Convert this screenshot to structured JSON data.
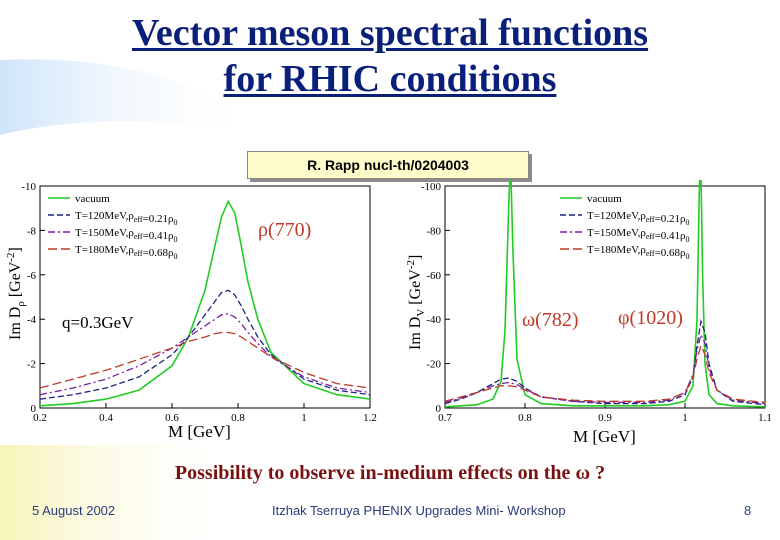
{
  "slide": {
    "title_line1": "Vector meson spectral functions",
    "title_line2": "for RHIC conditions",
    "citation": "R. Rapp nucl-th/0204003",
    "caption": "Possibility to observe in-medium effects on the",
    "caption_symbol": "ω",
    "caption_end": "?",
    "footer_date": "5 August 2002",
    "footer_author": "Itzhak Tserruya PHENIX Upgrades Mini- Workshop",
    "footer_page": "8"
  },
  "colors": {
    "title": "#0a1f7a",
    "caption": "#7a1111",
    "vacuum": "#22cc22",
    "T120": "#1a237e",
    "T150": "#7b1fa2",
    "T180": "#c0392b",
    "annotation": "#c0392b"
  },
  "chart_data": [
    {
      "type": "line",
      "xlabel": "M [GeV]",
      "ylabel": "Im D",
      "ylabel_sub": "ρ",
      "ylabel_unit": "[GeV",
      "ylabel_sup": "-2",
      "ylabel_close": "]",
      "xlim": [
        0.2,
        1.2
      ],
      "ylim": [
        0,
        10
      ],
      "xticks": [
        "0.2",
        "0.4",
        "0.6",
        "0.8",
        "1",
        "1.2"
      ],
      "yticks": [
        "0",
        "-2",
        "-4",
        "-6",
        "-8",
        "-10"
      ],
      "annotations": [
        "ρ(770)",
        "q=0.3GeV"
      ],
      "legend_position": "top-left",
      "series": [
        {
          "name": "vacuum",
          "legend": "vacuum",
          "style": "solid",
          "x": [
            0.2,
            0.3,
            0.4,
            0.5,
            0.6,
            0.65,
            0.7,
            0.73,
            0.75,
            0.77,
            0.79,
            0.81,
            0.83,
            0.86,
            0.9,
            1.0,
            1.1,
            1.2
          ],
          "y": [
            0.1,
            0.2,
            0.4,
            0.8,
            1.9,
            3.2,
            5.3,
            7.3,
            8.6,
            9.3,
            8.8,
            7.3,
            5.7,
            4.0,
            2.5,
            1.1,
            0.6,
            0.4
          ]
        },
        {
          "name": "T=120MeV",
          "legend": "T=120MeV,ρ_eff=0.21ρ_0",
          "style": "dashed",
          "x": [
            0.2,
            0.3,
            0.4,
            0.5,
            0.6,
            0.65,
            0.7,
            0.73,
            0.75,
            0.77,
            0.79,
            0.81,
            0.83,
            0.86,
            0.9,
            1.0,
            1.1,
            1.2
          ],
          "y": [
            0.4,
            0.6,
            0.9,
            1.4,
            2.4,
            3.2,
            4.2,
            4.8,
            5.2,
            5.3,
            5.1,
            4.6,
            4.0,
            3.2,
            2.4,
            1.3,
            0.8,
            0.6
          ]
        },
        {
          "name": "T=150MeV",
          "legend": "T=150MeV,ρ_eff=0.41ρ_0",
          "style": "dashdot",
          "x": [
            0.2,
            0.3,
            0.4,
            0.5,
            0.6,
            0.65,
            0.7,
            0.73,
            0.75,
            0.77,
            0.79,
            0.81,
            0.83,
            0.86,
            0.9,
            1.0,
            1.1,
            1.2
          ],
          "y": [
            0.6,
            0.9,
            1.3,
            1.9,
            2.7,
            3.2,
            3.7,
            4.0,
            4.2,
            4.25,
            4.1,
            3.8,
            3.4,
            2.9,
            2.3,
            1.4,
            0.9,
            0.7
          ]
        },
        {
          "name": "T=180MeV",
          "legend": "T=180MeV,ρ_eff=0.68ρ_0",
          "style": "dashed-long",
          "x": [
            0.2,
            0.3,
            0.4,
            0.5,
            0.6,
            0.65,
            0.7,
            0.73,
            0.75,
            0.77,
            0.79,
            0.81,
            0.83,
            0.86,
            0.9,
            1.0,
            1.1,
            1.2
          ],
          "y": [
            0.9,
            1.3,
            1.7,
            2.2,
            2.7,
            3.0,
            3.2,
            3.35,
            3.4,
            3.4,
            3.35,
            3.2,
            3.0,
            2.7,
            2.3,
            1.6,
            1.1,
            0.9
          ]
        }
      ]
    },
    {
      "type": "line",
      "xlabel": "M [GeV]",
      "ylabel": "Im D",
      "ylabel_sub": "V",
      "ylabel_unit": "[GeV",
      "ylabel_sup": "-2",
      "ylabel_close": "]",
      "xlim": [
        0.7,
        1.1
      ],
      "ylim": [
        0,
        100
      ],
      "xticks": [
        "0.7",
        "0.8",
        "0.9",
        "1",
        "1.1"
      ],
      "yticks": [
        "0",
        "-20",
        "-40",
        "-60",
        "-80",
        "-100"
      ],
      "annotations": [
        "ω(782)",
        "φ(1020)"
      ],
      "legend_position": "top-right",
      "series": [
        {
          "name": "vacuum",
          "legend": "vacuum",
          "style": "solid",
          "x": [
            0.7,
            0.74,
            0.76,
            0.77,
            0.775,
            0.78,
            0.782,
            0.785,
            0.79,
            0.8,
            0.82,
            0.86,
            0.9,
            0.95,
            0.98,
            1.0,
            1.01,
            1.015,
            1.018,
            1.019,
            1.02,
            1.022,
            1.025,
            1.03,
            1.04,
            1.06,
            1.1
          ],
          "y": [
            0.5,
            1.5,
            4,
            12,
            35,
            95,
            110,
            70,
            22,
            6,
            2,
            1,
            1,
            1,
            1.5,
            3,
            10,
            40,
            100,
            110,
            105,
            60,
            20,
            6,
            2,
            1,
            0.5
          ]
        },
        {
          "name": "T=120MeV",
          "legend": "T=120MeV,ρ_eff=0.21ρ_0",
          "style": "dashed",
          "x": [
            0.7,
            0.72,
            0.74,
            0.76,
            0.77,
            0.78,
            0.79,
            0.8,
            0.82,
            0.86,
            0.9,
            0.95,
            0.98,
            1.0,
            1.01,
            1.015,
            1.02,
            1.025,
            1.03,
            1.04,
            1.06,
            1.1
          ],
          "y": [
            2,
            4,
            7,
            11,
            13,
            13.5,
            12,
            9,
            5,
            3,
            2,
            2,
            3,
            6,
            14,
            28,
            39,
            34,
            20,
            8,
            3,
            1.5
          ]
        },
        {
          "name": "T=150MeV",
          "legend": "T=150MeV,ρ_eff=0.41ρ_0",
          "style": "dashdot",
          "x": [
            0.7,
            0.72,
            0.74,
            0.76,
            0.77,
            0.78,
            0.79,
            0.8,
            0.82,
            0.86,
            0.9,
            0.95,
            0.98,
            1.0,
            1.01,
            1.015,
            1.02,
            1.025,
            1.03,
            1.04,
            1.06,
            1.1
          ],
          "y": [
            2.5,
            4.5,
            7,
            10,
            11,
            11.5,
            10.5,
            8.5,
            5,
            3,
            2.5,
            2.5,
            3.5,
            7,
            15,
            26,
            33,
            29,
            18,
            8,
            3.5,
            2
          ]
        },
        {
          "name": "T=180MeV",
          "legend": "T=180MeV,ρ_eff=0.68ρ_0",
          "style": "dashed-long",
          "x": [
            0.7,
            0.72,
            0.74,
            0.76,
            0.77,
            0.78,
            0.79,
            0.8,
            0.82,
            0.86,
            0.9,
            0.95,
            0.98,
            1.0,
            1.01,
            1.015,
            1.02,
            1.025,
            1.03,
            1.04,
            1.06,
            1.1
          ],
          "y": [
            3,
            5,
            7,
            9,
            10,
            10,
            9.5,
            8,
            5,
            3.5,
            3,
            3,
            4,
            7,
            14,
            22,
            28,
            24,
            16,
            8,
            4,
            2.5
          ]
        }
      ]
    }
  ]
}
